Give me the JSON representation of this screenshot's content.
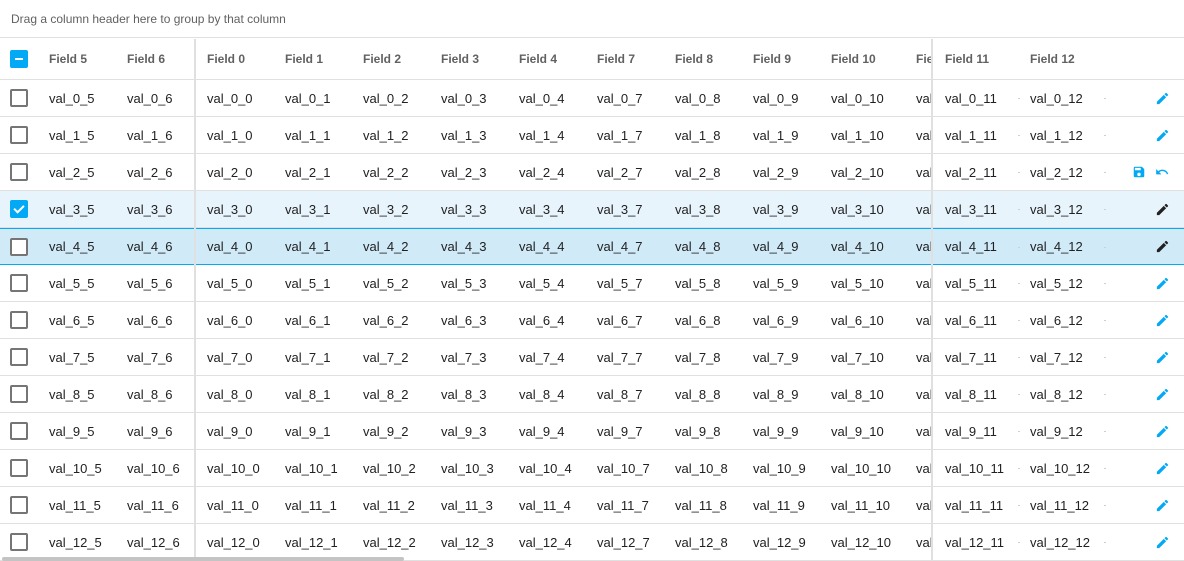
{
  "group_panel": {
    "text": "Drag a column header here to group by that column"
  },
  "header": {
    "columns": [
      "Field 5",
      "Field 6",
      "Field 0",
      "Field 1",
      "Field 2",
      "Field 3",
      "Field 4",
      "Field 7",
      "Field 8",
      "Field 9",
      "Field 10",
      "Field 11",
      "Field 12"
    ],
    "truncated_column": "Fie",
    "select_all_state": "indeterminate"
  },
  "rows": [
    {
      "cells": [
        "val_0_5",
        "val_0_6",
        "val_0_0",
        "val_0_1",
        "val_0_2",
        "val_0_3",
        "val_0_4",
        "val_0_7",
        "val_0_8",
        "val_0_9",
        "val_0_10",
        "val",
        "val_0_11",
        "val_0_12"
      ],
      "checked": false,
      "state": "normal",
      "actions": [
        "edit-icon"
      ]
    },
    {
      "cells": [
        "val_1_5",
        "val_1_6",
        "val_1_0",
        "val_1_1",
        "val_1_2",
        "val_1_3",
        "val_1_4",
        "val_1_7",
        "val_1_8",
        "val_1_9",
        "val_1_10",
        "val",
        "val_1_11",
        "val_1_12"
      ],
      "checked": false,
      "state": "normal",
      "actions": [
        "edit-icon"
      ]
    },
    {
      "cells": [
        "val_2_5",
        "val_2_6",
        "val_2_0",
        "val_2_1",
        "val_2_2",
        "val_2_3",
        "val_2_4",
        "val_2_7",
        "val_2_8",
        "val_2_9",
        "val_2_10",
        "val",
        "val_2_11",
        "val_2_12"
      ],
      "checked": false,
      "state": "editing",
      "actions": [
        "save-icon",
        "undo-icon"
      ]
    },
    {
      "cells": [
        "val_3_5",
        "val_3_6",
        "val_3_0",
        "val_3_1",
        "val_3_2",
        "val_3_3",
        "val_3_4",
        "val_3_7",
        "val_3_8",
        "val_3_9",
        "val_3_10",
        "val",
        "val_3_11",
        "val_3_12"
      ],
      "checked": true,
      "state": "selected",
      "actions": [
        "edit-icon"
      ]
    },
    {
      "cells": [
        "val_4_5",
        "val_4_6",
        "val_4_0",
        "val_4_1",
        "val_4_2",
        "val_4_3",
        "val_4_4",
        "val_4_7",
        "val_4_8",
        "val_4_9",
        "val_4_10",
        "val",
        "val_4_11",
        "val_4_12"
      ],
      "checked": false,
      "state": "focused",
      "actions": [
        "edit-icon"
      ]
    },
    {
      "cells": [
        "val_5_5",
        "val_5_6",
        "val_5_0",
        "val_5_1",
        "val_5_2",
        "val_5_3",
        "val_5_4",
        "val_5_7",
        "val_5_8",
        "val_5_9",
        "val_5_10",
        "val",
        "val_5_11",
        "val_5_12"
      ],
      "checked": false,
      "state": "normal",
      "actions": [
        "edit-icon"
      ]
    },
    {
      "cells": [
        "val_6_5",
        "val_6_6",
        "val_6_0",
        "val_6_1",
        "val_6_2",
        "val_6_3",
        "val_6_4",
        "val_6_7",
        "val_6_8",
        "val_6_9",
        "val_6_10",
        "val",
        "val_6_11",
        "val_6_12"
      ],
      "checked": false,
      "state": "normal",
      "actions": [
        "edit-icon"
      ]
    },
    {
      "cells": [
        "val_7_5",
        "val_7_6",
        "val_7_0",
        "val_7_1",
        "val_7_2",
        "val_7_3",
        "val_7_4",
        "val_7_7",
        "val_7_8",
        "val_7_9",
        "val_7_10",
        "val",
        "val_7_11",
        "val_7_12"
      ],
      "checked": false,
      "state": "normal",
      "actions": [
        "edit-icon"
      ]
    },
    {
      "cells": [
        "val_8_5",
        "val_8_6",
        "val_8_0",
        "val_8_1",
        "val_8_2",
        "val_8_3",
        "val_8_4",
        "val_8_7",
        "val_8_8",
        "val_8_9",
        "val_8_10",
        "val",
        "val_8_11",
        "val_8_12"
      ],
      "checked": false,
      "state": "normal",
      "actions": [
        "edit-icon"
      ]
    },
    {
      "cells": [
        "val_9_5",
        "val_9_6",
        "val_9_0",
        "val_9_1",
        "val_9_2",
        "val_9_3",
        "val_9_4",
        "val_9_7",
        "val_9_8",
        "val_9_9",
        "val_9_10",
        "val",
        "val_9_11",
        "val_9_12"
      ],
      "checked": false,
      "state": "normal",
      "actions": [
        "edit-icon"
      ]
    },
    {
      "cells": [
        "val_10_5",
        "val_10_6",
        "val_10_0",
        "val_10_1",
        "val_10_2",
        "val_10_3",
        "val_10_4",
        "val_10_7",
        "val_10_8",
        "val_10_9",
        "val_10_10",
        "val",
        "val_10_11",
        "val_10_12"
      ],
      "checked": false,
      "state": "normal",
      "actions": [
        "edit-icon"
      ]
    },
    {
      "cells": [
        "val_11_5",
        "val_11_6",
        "val_11_0",
        "val_11_1",
        "val_11_2",
        "val_11_3",
        "val_11_4",
        "val_11_7",
        "val_11_8",
        "val_11_9",
        "val_11_10",
        "val",
        "val_11_11",
        "val_11_12"
      ],
      "checked": false,
      "state": "normal",
      "actions": [
        "edit-icon"
      ]
    },
    {
      "cells": [
        "val_12_5",
        "val_12_6",
        "val_12_0",
        "val_12_1",
        "val_12_2",
        "val_12_3",
        "val_12_4",
        "val_12_7",
        "val_12_8",
        "val_12_9",
        "val_12_10",
        "val",
        "val_12_11",
        "val_12_12"
      ],
      "checked": false,
      "state": "normal",
      "actions": [
        "edit-icon"
      ]
    }
  ],
  "colors": {
    "accent": "#03a9f4",
    "icon_dark": "#212121",
    "selected_row": "#e8f4fc",
    "focused_row": "#d0eaf8",
    "border": "#e0e0e0"
  }
}
